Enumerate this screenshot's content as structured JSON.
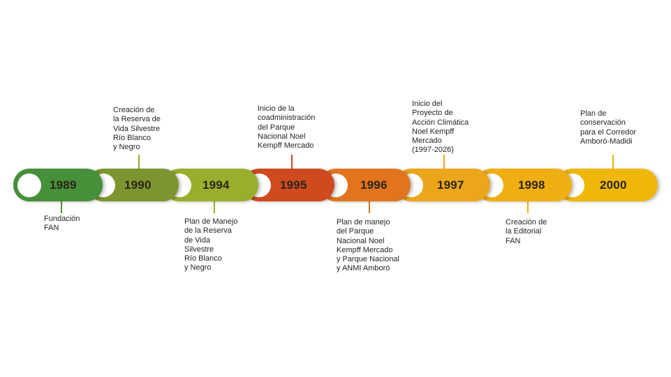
{
  "events": [
    {
      "year": "1989",
      "color": "#46903a",
      "stem_color": "#46903a",
      "label": "Fundación\nFAN"
    },
    {
      "year": "1990",
      "color": "#7c9530",
      "stem_color": "#9aa22a",
      "label": "Creación de\nla Reserva de\nVida Silvestre\nRío Blanco\ny Negro"
    },
    {
      "year": "1994",
      "color": "#9aae2e",
      "stem_color": "#9aae2e",
      "label": "Plan de Manejo\nde la Reserva\nde Vida\nSilvestre\nRío Blanco\ny Negro"
    },
    {
      "year": "1995",
      "color": "#cf4a1f",
      "stem_color": "#c84a22",
      "label": "Inicio de la\ncoadministración\ndel Parque\nNacional Noel\nKempff Mercado"
    },
    {
      "year": "1996",
      "color": "#e2741e",
      "stem_color": "#e2761e",
      "label": "Plan de manejo\ndel Parque\nNacional Noel\nKempff Mercado\ny Parque Nacional\ny ANMI Amboró"
    },
    {
      "year": "1997",
      "color": "#eca61b",
      "stem_color": "#eca61b",
      "label": "Inicio del\nProyecto de\nAcción Climática\nNoel Kempff\nMercado\n(1997-2026)"
    },
    {
      "year": "1998",
      "color": "#efaf12",
      "stem_color": "#efaf12",
      "label": "Creación de\nla Editorial\nFAN"
    },
    {
      "year": "2000",
      "color": "#efb709",
      "stem_color": "#efb709",
      "label": "Plan de\nconservación\npara el Corredor\nAmboró-Madidi"
    }
  ]
}
